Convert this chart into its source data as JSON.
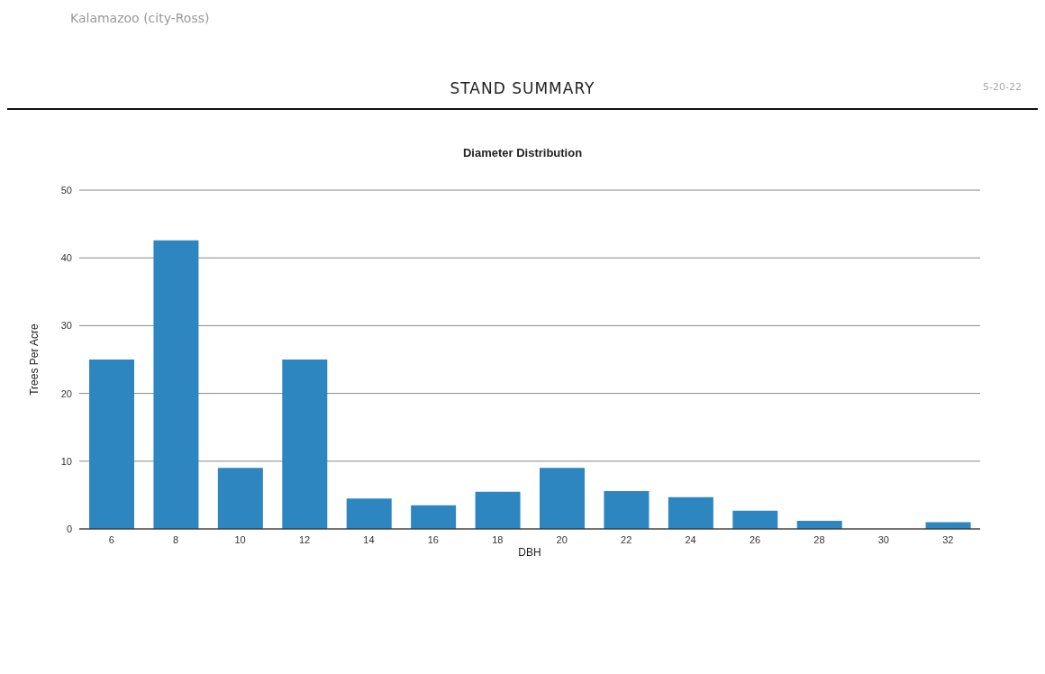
{
  "chart_data": {
    "type": "bar",
    "title": "Diameter Distribution",
    "xlabel": "DBH",
    "ylabel": "Trees Per Acre",
    "annotations": [
      "Kalamazoo (city-Ross)",
      "STAND SUMMARY",
      "5-20-22"
    ],
    "categories": [
      "6",
      "8",
      "10",
      "12",
      "14",
      "16",
      "18",
      "20",
      "22",
      "24",
      "26",
      "28",
      "30",
      "32"
    ],
    "values": [
      25,
      42.6,
      9,
      25,
      4.5,
      3.5,
      5.5,
      9,
      5.6,
      4.7,
      2.7,
      1.2,
      0,
      1
    ],
    "color": "#2e86c1",
    "ylim": [
      0,
      50
    ],
    "yticks": [
      0,
      10,
      20,
      30,
      40,
      50
    ],
    "grid": "y",
    "legend": false
  }
}
